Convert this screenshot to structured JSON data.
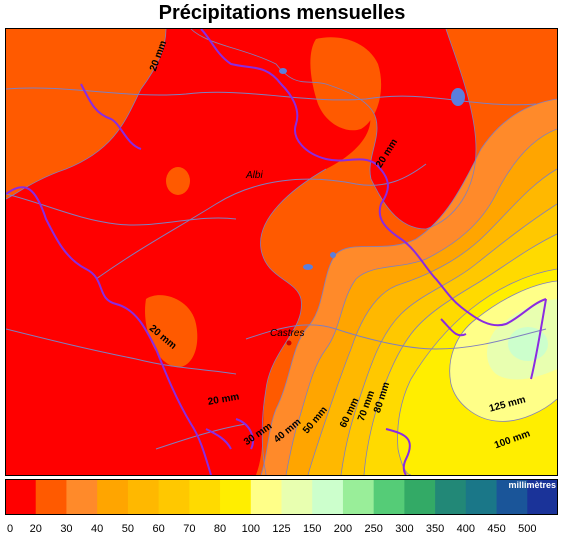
{
  "header": {
    "title": "Précipitations mensuelles"
  },
  "map": {
    "cities": [
      {
        "name": "Albi"
      },
      {
        "name": "Castres"
      }
    ],
    "contour_labels": [
      "20 mm",
      "20 mm",
      "20 mm",
      "20 mm",
      "30 mm",
      "40 mm",
      "50 mm",
      "60 mm",
      "70 mm",
      "80 mm",
      "125 mm",
      "100 mm"
    ]
  },
  "legend": {
    "unit": "millimètres",
    "ticks": [
      "0",
      "20",
      "30",
      "40",
      "50",
      "60",
      "70",
      "80",
      "100",
      "125",
      "150",
      "200",
      "250",
      "300",
      "350",
      "400",
      "450",
      "500"
    ],
    "colors": [
      "#ff0000",
      "#ff5a00",
      "#ff8a2a",
      "#ffa500",
      "#ffb800",
      "#ffc800",
      "#ffda00",
      "#ffee00",
      "#ffff88",
      "#e8ffb0",
      "#ccffcc",
      "#99ee99",
      "#55cc77",
      "#33aa66",
      "#228877",
      "#1a7788",
      "#1a5599",
      "#1a3399"
    ]
  }
}
